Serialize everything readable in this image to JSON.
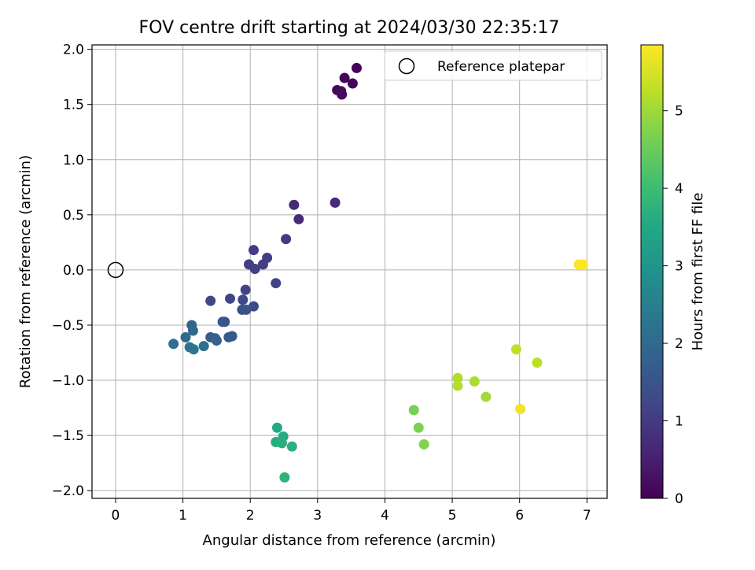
{
  "chart_data": {
    "type": "scatter",
    "title": "FOV centre drift starting at 2024/03/30 22:35:17",
    "xlabel": "Angular distance from reference (arcmin)",
    "ylabel": "Rotation from reference (arcmin)",
    "xlim": [
      -0.35,
      7.3
    ],
    "ylim": [
      -2.07,
      2.04
    ],
    "xticks": [
      0,
      1,
      2,
      3,
      4,
      5,
      6,
      7
    ],
    "xtick_labels": [
      "0",
      "1",
      "2",
      "3",
      "4",
      "5",
      "6",
      "7"
    ],
    "yticks": [
      -2.0,
      -1.5,
      -1.0,
      -0.5,
      0.0,
      0.5,
      1.0,
      1.5,
      2.0
    ],
    "ytick_labels": [
      "−2.0",
      "−1.5",
      "−1.0",
      "−0.5",
      "0.0",
      "0.5",
      "1.0",
      "1.5",
      "2.0"
    ],
    "grid": true,
    "legend": {
      "placement": "upper right",
      "entries": [
        {
          "label": "Reference platepar",
          "marker": "open-circle",
          "color": "#000000"
        }
      ]
    },
    "reference_point": {
      "x": 0.0,
      "y": 0.0
    },
    "colorbar": {
      "label": "Hours from first FF file",
      "min": 0,
      "max": 5.85,
      "colormap": "viridis",
      "ticks": [
        0,
        1,
        2,
        3,
        4,
        5
      ],
      "tick_labels": [
        "0",
        "1",
        "2",
        "3",
        "4",
        "5"
      ]
    },
    "points": [
      {
        "x": 3.58,
        "y": 1.83,
        "c": 0.03
      },
      {
        "x": 3.4,
        "y": 1.74,
        "c": 0.06
      },
      {
        "x": 3.52,
        "y": 1.69,
        "c": 0.09
      },
      {
        "x": 3.29,
        "y": 1.63,
        "c": 0.12
      },
      {
        "x": 3.35,
        "y": 1.62,
        "c": 0.15
      },
      {
        "x": 3.36,
        "y": 1.59,
        "c": 0.18
      },
      {
        "x": 3.26,
        "y": 0.61,
        "c": 0.7
      },
      {
        "x": 2.65,
        "y": 0.59,
        "c": 0.72
      },
      {
        "x": 2.72,
        "y": 0.46,
        "c": 0.75
      },
      {
        "x": 2.53,
        "y": 0.28,
        "c": 1.0
      },
      {
        "x": 2.05,
        "y": 0.18,
        "c": 1.02
      },
      {
        "x": 2.25,
        "y": 0.11,
        "c": 1.04
      },
      {
        "x": 1.98,
        "y": 0.05,
        "c": 1.06
      },
      {
        "x": 2.19,
        "y": 0.05,
        "c": 1.08
      },
      {
        "x": 2.07,
        "y": 0.01,
        "c": 1.1
      },
      {
        "x": 2.38,
        "y": -0.12,
        "c": 1.12
      },
      {
        "x": 1.93,
        "y": -0.18,
        "c": 1.15
      },
      {
        "x": 1.7,
        "y": -0.26,
        "c": 1.2
      },
      {
        "x": 1.89,
        "y": -0.27,
        "c": 1.25
      },
      {
        "x": 1.41,
        "y": -0.28,
        "c": 1.3
      },
      {
        "x": 2.05,
        "y": -0.33,
        "c": 1.35
      },
      {
        "x": 1.88,
        "y": -0.36,
        "c": 1.4
      },
      {
        "x": 1.94,
        "y": -0.36,
        "c": 1.45
      },
      {
        "x": 1.62,
        "y": -0.47,
        "c": 1.5
      },
      {
        "x": 1.59,
        "y": -0.47,
        "c": 1.55
      },
      {
        "x": 1.73,
        "y": -0.6,
        "c": 1.6
      },
      {
        "x": 1.68,
        "y": -0.61,
        "c": 1.65
      },
      {
        "x": 1.41,
        "y": -0.61,
        "c": 1.7
      },
      {
        "x": 1.48,
        "y": -0.62,
        "c": 1.75
      },
      {
        "x": 1.5,
        "y": -0.64,
        "c": 1.8
      },
      {
        "x": 1.13,
        "y": -0.5,
        "c": 1.9
      },
      {
        "x": 1.15,
        "y": -0.55,
        "c": 1.95
      },
      {
        "x": 1.04,
        "y": -0.61,
        "c": 2.0
      },
      {
        "x": 0.86,
        "y": -0.67,
        "c": 2.1
      },
      {
        "x": 1.31,
        "y": -0.69,
        "c": 2.15
      },
      {
        "x": 1.1,
        "y": -0.7,
        "c": 2.2
      },
      {
        "x": 1.16,
        "y": -0.72,
        "c": 2.25
      },
      {
        "x": 2.4,
        "y": -1.43,
        "c": 3.5
      },
      {
        "x": 2.49,
        "y": -1.51,
        "c": 3.55
      },
      {
        "x": 2.38,
        "y": -1.56,
        "c": 3.6
      },
      {
        "x": 2.47,
        "y": -1.57,
        "c": 3.65
      },
      {
        "x": 2.62,
        "y": -1.6,
        "c": 3.7
      },
      {
        "x": 2.51,
        "y": -1.88,
        "c": 3.75
      },
      {
        "x": 4.43,
        "y": -1.27,
        "c": 4.65
      },
      {
        "x": 4.5,
        "y": -1.43,
        "c": 4.7
      },
      {
        "x": 4.58,
        "y": -1.58,
        "c": 4.75
      },
      {
        "x": 5.5,
        "y": -1.15,
        "c": 5.05
      },
      {
        "x": 5.33,
        "y": -1.01,
        "c": 5.1
      },
      {
        "x": 5.08,
        "y": -0.98,
        "c": 5.15
      },
      {
        "x": 5.08,
        "y": -1.05,
        "c": 5.2
      },
      {
        "x": 6.26,
        "y": -0.84,
        "c": 5.25
      },
      {
        "x": 5.95,
        "y": -0.72,
        "c": 5.3
      },
      {
        "x": 6.01,
        "y": -1.26,
        "c": 5.7
      },
      {
        "x": 6.88,
        "y": 0.05,
        "c": 5.8
      },
      {
        "x": 6.94,
        "y": 0.05,
        "c": 5.85
      }
    ]
  }
}
